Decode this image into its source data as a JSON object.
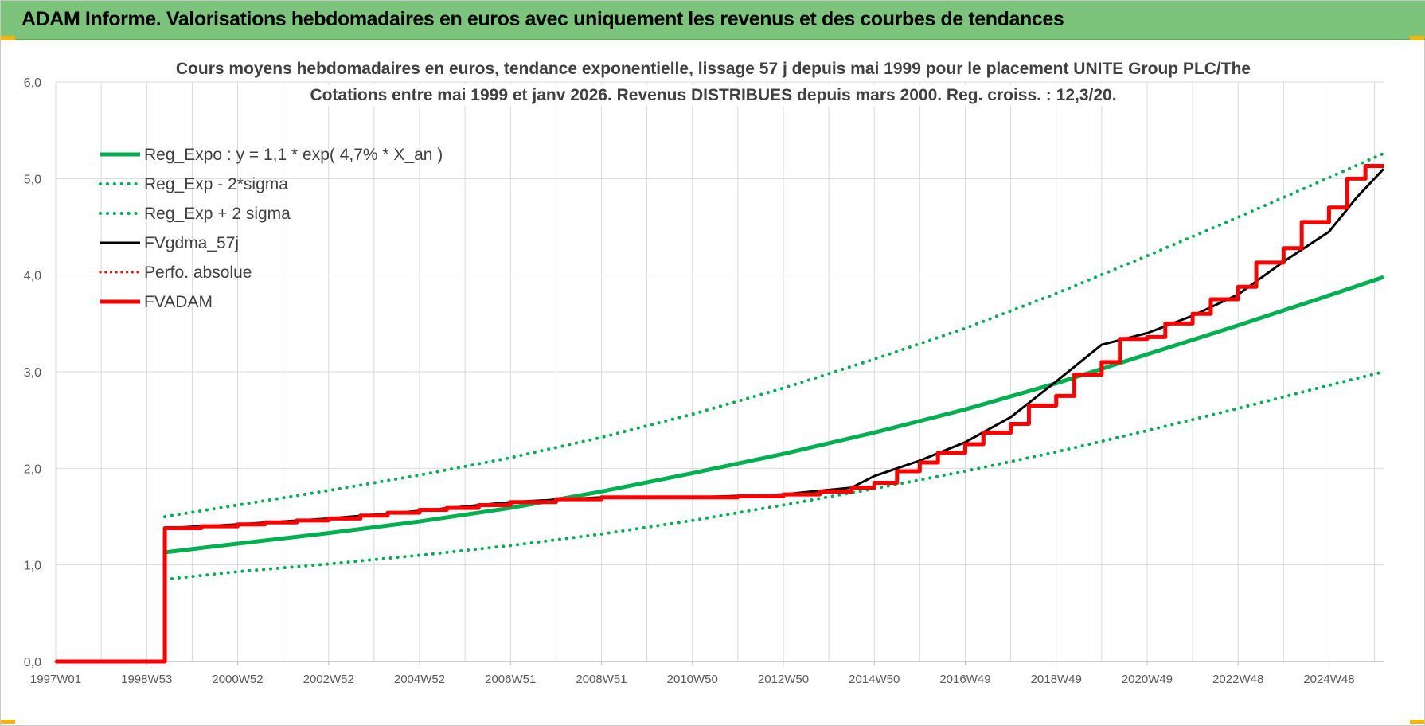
{
  "header": {
    "title": "ADAM Informe. Valorisations hebdomadaires en euros avec uniquement les revenus et des courbes de tendances"
  },
  "colors": {
    "header_bg": "#7cc47c",
    "reg_expo": "#00b050",
    "fvgdma": "#000000",
    "fvadam": "#ff0000",
    "grid": "#d9d9d9"
  },
  "chart_data": {
    "type": "line",
    "title_lines": [
      "Cours moyens hebdomadaires en euros, tendance exponentielle, lissage 57 j depuis mai 1999 pour le placement UNITE Group PLC/The",
      "Cotations entre mai 1999 et janv 2026. Revenus DISTRIBUES depuis mars 2000. Reg. croiss. : 12,3/20."
    ],
    "xlabel": "",
    "ylabel": "",
    "x_unit": "year",
    "xlim": [
      1997.0,
      2026.2
    ],
    "ylim": [
      0,
      6
    ],
    "y_ticks": [
      "0,0",
      "1,0",
      "2,0",
      "3,0",
      "4,0",
      "5,0",
      "6,0"
    ],
    "x_ticks": [
      {
        "x": 1997.0,
        "label": "1997W01"
      },
      {
        "x": 1999.0,
        "label": "1998W53"
      },
      {
        "x": 2001.0,
        "label": "2000W52"
      },
      {
        "x": 2003.0,
        "label": "2002W52"
      },
      {
        "x": 2005.0,
        "label": "2004W52"
      },
      {
        "x": 2007.0,
        "label": "2006W51"
      },
      {
        "x": 2009.0,
        "label": "2008W51"
      },
      {
        "x": 2011.0,
        "label": "2010W50"
      },
      {
        "x": 2013.0,
        "label": "2012W50"
      },
      {
        "x": 2015.0,
        "label": "2014W50"
      },
      {
        "x": 2017.0,
        "label": "2016W49"
      },
      {
        "x": 2019.0,
        "label": "2018W49"
      },
      {
        "x": 2021.0,
        "label": "2020W49"
      },
      {
        "x": 2023.0,
        "label": "2022W48"
      },
      {
        "x": 2025.0,
        "label": "2024W48"
      }
    ],
    "vertical_grid_step": 1,
    "grid": true,
    "legend_position": "top-left",
    "legend": [
      {
        "label": "Reg_Expo : y = 1,1 * exp( 4,7% *  X_an )",
        "series": "reg_expo"
      },
      {
        "label": "Reg_Exp - 2*sigma",
        "series": "reg_minus"
      },
      {
        "label": "Reg_Exp + 2 sigma",
        "series": "reg_plus"
      },
      {
        "label": "FVgdma_57j",
        "series": "fvgdma"
      },
      {
        "label": "Perfo. absolue",
        "series": "perfo"
      },
      {
        "label": "FVADAM",
        "series": "fvadam"
      }
    ],
    "series": [
      {
        "key": "reg_expo",
        "color": "#00b050",
        "style": "solid",
        "width": 5,
        "x": [
          1999.4,
          2001,
          2003,
          2005,
          2007,
          2009,
          2011,
          2013,
          2015,
          2017,
          2019,
          2021,
          2023,
          2025,
          2026.2
        ],
        "y": [
          1.13,
          1.22,
          1.33,
          1.45,
          1.59,
          1.76,
          1.95,
          2.15,
          2.37,
          2.61,
          2.88,
          3.18,
          3.48,
          3.79,
          3.98
        ]
      },
      {
        "key": "reg_minus",
        "color": "#00b050",
        "style": "dotted",
        "width": 4,
        "x": [
          1999.4,
          2001,
          2003,
          2005,
          2007,
          2009,
          2011,
          2013,
          2015,
          2017,
          2019,
          2021,
          2023,
          2025,
          2026.2
        ],
        "y": [
          0.85,
          0.93,
          1.01,
          1.1,
          1.2,
          1.32,
          1.46,
          1.62,
          1.79,
          1.97,
          2.17,
          2.39,
          2.62,
          2.86,
          3.0
        ]
      },
      {
        "key": "reg_plus",
        "color": "#00b050",
        "style": "dotted",
        "width": 4,
        "x": [
          1999.4,
          2001,
          2003,
          2005,
          2007,
          2009,
          2011,
          2013,
          2015,
          2017,
          2019,
          2021,
          2023,
          2025,
          2026.2
        ],
        "y": [
          1.5,
          1.62,
          1.77,
          1.93,
          2.11,
          2.32,
          2.56,
          2.83,
          3.13,
          3.45,
          3.81,
          4.2,
          4.6,
          5.01,
          5.26
        ]
      },
      {
        "key": "fvgdma",
        "color": "#000000",
        "style": "solid",
        "width": 3,
        "x": [
          1997.0,
          1999.4,
          1999.4,
          2001,
          2003,
          2005,
          2007,
          2009,
          2011,
          2013,
          2014.5,
          2015,
          2016,
          2017,
          2018,
          2019,
          2020,
          2021,
          2022,
          2023,
          2024,
          2025,
          2025.6,
          2026.2
        ],
        "y": [
          0,
          0,
          1.38,
          1.42,
          1.48,
          1.56,
          1.65,
          1.7,
          1.7,
          1.73,
          1.8,
          1.92,
          2.08,
          2.27,
          2.53,
          2.9,
          3.28,
          3.4,
          3.58,
          3.8,
          4.14,
          4.45,
          4.8,
          5.1
        ]
      },
      {
        "key": "perfo",
        "color": "#ff0000",
        "style": "dotted",
        "width": 3,
        "x": [
          1997.0,
          1999.4
        ],
        "y": [
          0,
          0
        ]
      },
      {
        "key": "fvadam",
        "color": "#ff0000",
        "style": "step",
        "width": 5,
        "x": [
          1997.0,
          1999.4,
          1999.4,
          2000.2,
          2001.0,
          2001.6,
          2002.3,
          2003.0,
          2003.7,
          2004.3,
          2005.0,
          2005.6,
          2006.3,
          2007.0,
          2008.0,
          2009.0,
          2011.0,
          2012.0,
          2013.0,
          2013.8,
          2014.5,
          2015.0,
          2015.5,
          2016.0,
          2016.4,
          2017.0,
          2017.4,
          2018.0,
          2018.4,
          2019.0,
          2019.4,
          2020.0,
          2020.4,
          2021.0,
          2021.4,
          2022.0,
          2022.4,
          2023.0,
          2023.4,
          2024.0,
          2024.4,
          2025.0,
          2025.4,
          2025.8
        ],
        "y": [
          0,
          0,
          1.38,
          1.4,
          1.42,
          1.44,
          1.46,
          1.48,
          1.51,
          1.54,
          1.57,
          1.59,
          1.62,
          1.65,
          1.68,
          1.7,
          1.7,
          1.71,
          1.73,
          1.76,
          1.8,
          1.85,
          1.97,
          2.06,
          2.16,
          2.25,
          2.37,
          2.46,
          2.65,
          2.75,
          2.97,
          3.1,
          3.34,
          3.36,
          3.5,
          3.6,
          3.75,
          3.88,
          4.13,
          4.28,
          4.55,
          4.7,
          5.0,
          5.13
        ]
      }
    ]
  }
}
